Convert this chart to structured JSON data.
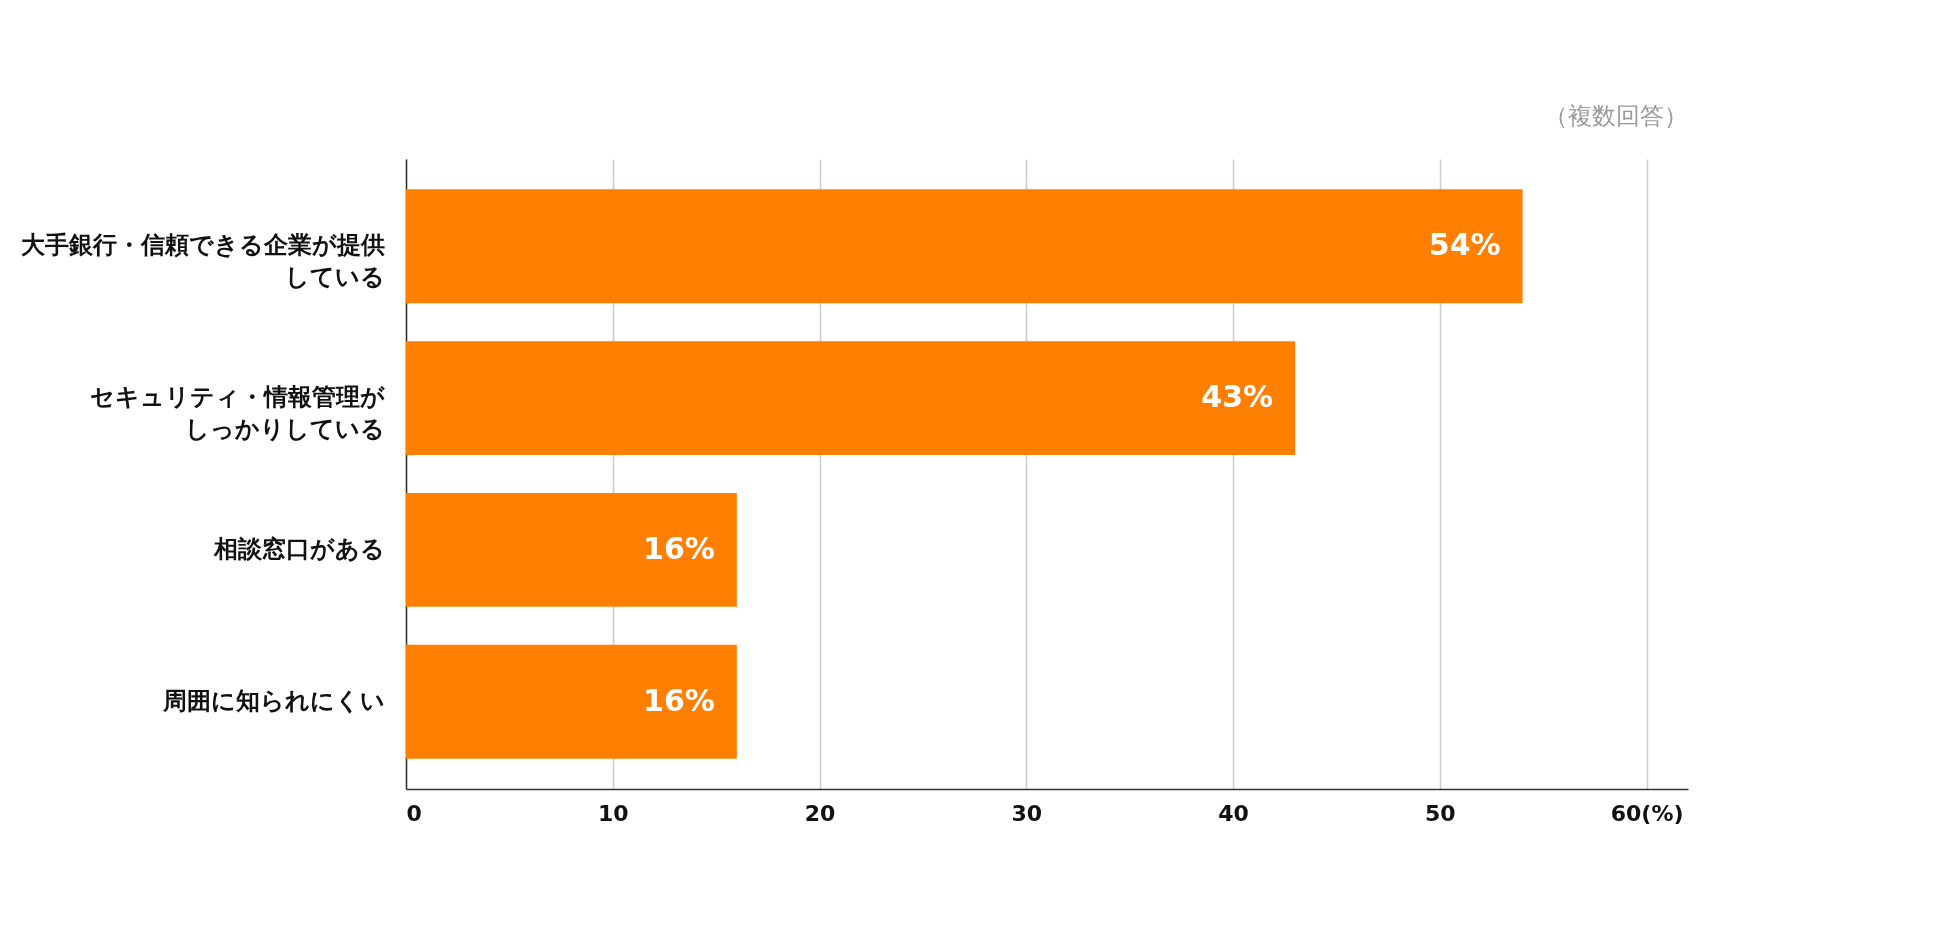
{
  "chart_data": {
    "type": "bar",
    "orientation": "horizontal",
    "categories": [
      "大手銀行・信頼できる企業が提供している",
      "セキュリティ・情報管理がしっかりしている",
      "相談窓口がある",
      "周囲に知られにくい"
    ],
    "values": [
      54,
      43,
      16,
      16
    ],
    "value_labels": [
      "54%",
      "43%",
      "16%",
      "16%"
    ],
    "color": "#ff7f00",
    "xlim": [
      0,
      62
    ],
    "xticks": [
      0,
      10,
      20,
      30,
      40,
      50,
      {
        "value": 60,
        "label": "60(%)"
      }
    ],
    "grid": "x",
    "annotations": [
      "（複数回答）"
    ]
  }
}
